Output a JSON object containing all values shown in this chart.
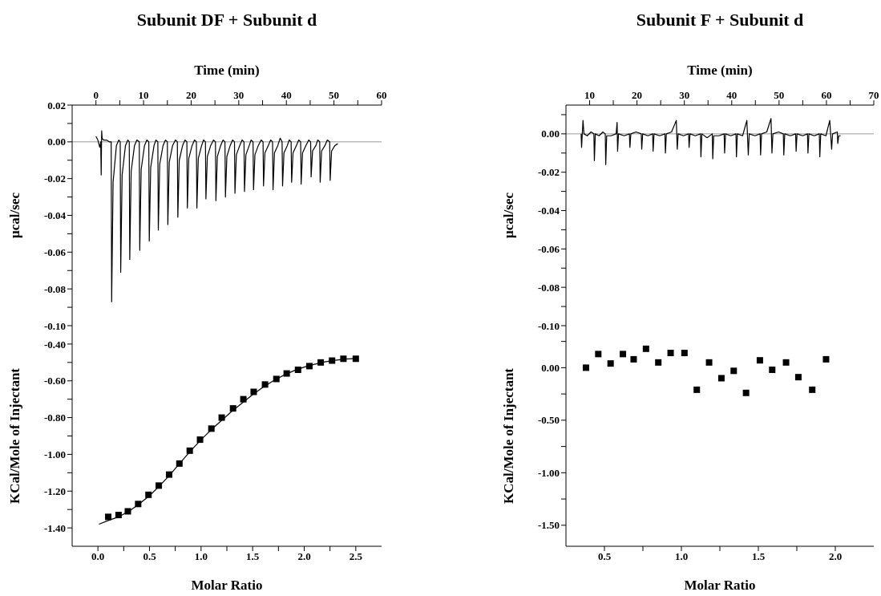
{
  "chart_data": [
    {
      "type": "line",
      "title": "Subunit DF + Subunit d",
      "xlabel": "Time (min)",
      "ylabel": "µcal/sec",
      "xlim": [
        -5,
        60
      ],
      "xticks": [
        0,
        {
          "value": 5,
          "label": null
        },
        10,
        {
          "value": 15,
          "label": null
        },
        20,
        {
          "value": 25,
          "label": null
        },
        30,
        {
          "value": 35,
          "label": null
        },
        40,
        {
          "value": 45,
          "label": null
        },
        50,
        {
          "value": 55,
          "label": null
        },
        60
      ],
      "ylim": [
        -0.1,
        0.02
      ],
      "yticks": [
        {
          "value": 0.02,
          "label": "0.02"
        },
        {
          "value": 0.01,
          "label": null
        },
        {
          "value": 0,
          "label": "0.00"
        },
        {
          "value": -0.01,
          "label": null
        },
        {
          "value": -0.02,
          "label": "-0.02"
        },
        {
          "value": -0.03,
          "label": null
        },
        {
          "value": -0.04,
          "label": "-0.04"
        },
        {
          "value": -0.05,
          "label": null
        },
        {
          "value": -0.06,
          "label": "-0.06"
        },
        {
          "value": -0.07,
          "label": null
        },
        {
          "value": -0.08,
          "label": "-0.08"
        },
        {
          "value": -0.09,
          "label": null
        },
        {
          "value": -0.1,
          "label": "-0.10"
        }
      ],
      "ref_lines": [
        {
          "axis": "y",
          "value": 0,
          "color": "#999999"
        }
      ],
      "series": [
        {
          "color": "#000000",
          "x": [
            0,
            0.4,
            0.8,
            1.0,
            1.1,
            1.2,
            1.3,
            1.6,
            2.2,
            2.8,
            3.2,
            3.3,
            3.6,
            4.3,
            4.8,
            5.1,
            5.2,
            5.5,
            6.2,
            6.7,
            7.0,
            7.1,
            7.4,
            8.1,
            8.6,
            9.1,
            9.2,
            9.5,
            10.2,
            10.7,
            11.1,
            11.2,
            11.5,
            12.2,
            12.6,
            13.0,
            13.1,
            13.4,
            14.1,
            14.6,
            15.0,
            15.1,
            15.4,
            16.1,
            16.7,
            17.1,
            17.2,
            17.5,
            18.2,
            18.7,
            19.1,
            19.2,
            19.5,
            20.2,
            20.7,
            21.1,
            21.2,
            21.5,
            22.2,
            22.6,
            23.0,
            23.1,
            23.4,
            24.1,
            24.7,
            25.1,
            25.2,
            25.5,
            26.2,
            26.7,
            27.1,
            27.2,
            27.5,
            28.2,
            28.7,
            29.1,
            29.2,
            29.5,
            30.2,
            30.7,
            31.1,
            31.2,
            31.5,
            32.2,
            32.6,
            33.0,
            33.1,
            33.4,
            34.1,
            34.7,
            35.1,
            35.2,
            35.5,
            36.2,
            36.7,
            37.1,
            37.2,
            37.5,
            38.2,
            38.7,
            39.1,
            39.2,
            39.5,
            40.2,
            40.6,
            41.0,
            41.1,
            41.4,
            42.1,
            42.6,
            43.0,
            43.1,
            43.4,
            44.1,
            44.7,
            45.1,
            45.2,
            45.5,
            46.2,
            46.6,
            47.0,
            47.1,
            47.4,
            48.1,
            48.6,
            49.1,
            49.2,
            49.5,
            50.2,
            50.8
          ],
          "values": [
            0.003,
            0.001,
            -0.003,
            0,
            -0.018,
            0.006,
            0.002,
            0.001,
            0.001,
            0,
            0,
            -0.087,
            -0.022,
            -0.002,
            0.001,
            0,
            -0.071,
            -0.018,
            -0.002,
            0.001,
            0,
            -0.064,
            -0.016,
            -0.002,
            0.001,
            0,
            -0.059,
            -0.015,
            -0.002,
            0.001,
            0,
            -0.054,
            -0.014,
            -0.002,
            0.001,
            0,
            -0.048,
            -0.012,
            -0.002,
            0.001,
            0,
            -0.045,
            -0.011,
            -0.002,
            0.001,
            0,
            -0.041,
            -0.01,
            -0.002,
            0.001,
            0,
            -0.036,
            -0.009,
            -0.002,
            0.001,
            0,
            -0.036,
            -0.009,
            -0.002,
            0.001,
            0,
            -0.031,
            -0.008,
            -0.002,
            0.001,
            0,
            -0.032,
            -0.008,
            -0.002,
            0.001,
            0,
            -0.03,
            -0.008,
            -0.002,
            0.001,
            0,
            -0.028,
            -0.007,
            -0.002,
            0.001,
            0,
            -0.027,
            -0.007,
            -0.002,
            0.001,
            0,
            -0.026,
            -0.007,
            -0.002,
            0.001,
            0,
            -0.024,
            -0.006,
            -0.002,
            0.001,
            0,
            -0.026,
            -0.006,
            -0.002,
            0.002,
            0,
            -0.024,
            -0.006,
            -0.002,
            0.001,
            0,
            -0.022,
            -0.006,
            -0.002,
            0.001,
            0,
            -0.023,
            -0.006,
            -0.002,
            0.001,
            0,
            -0.019,
            -0.005,
            -0.002,
            0.001,
            0,
            -0.022,
            -0.005,
            -0.002,
            0.001,
            0,
            -0.021,
            -0.005,
            -0.002,
            -0.001
          ]
        }
      ]
    },
    {
      "type": "scatter",
      "xlabel": "Molar Ratio",
      "ylabel": "KCal/Mole of Injectant",
      "xlim": [
        -0.25,
        2.75
      ],
      "xticks": [
        {
          "value": 0,
          "label": "0.0"
        },
        {
          "value": 0.25,
          "label": null
        },
        {
          "value": 0.5,
          "label": "0.5"
        },
        {
          "value": 0.75,
          "label": null
        },
        {
          "value": 1,
          "label": "1.0"
        },
        {
          "value": 1.25,
          "label": null
        },
        {
          "value": 1.5,
          "label": "1.5"
        },
        {
          "value": 1.75,
          "label": null
        },
        {
          "value": 2,
          "label": "2.0"
        },
        {
          "value": 2.25,
          "label": null
        },
        {
          "value": 2.5,
          "label": "2.5"
        }
      ],
      "ylim": [
        -1.5,
        -0.3
      ],
      "yticks": [
        {
          "value": -0.4,
          "label": "-0.40"
        },
        {
          "value": -0.5,
          "label": null
        },
        {
          "value": -0.6,
          "label": "-0.60"
        },
        {
          "value": -0.7,
          "label": null
        },
        {
          "value": -0.8,
          "label": "-0.80"
        },
        {
          "value": -0.9,
          "label": null
        },
        {
          "value": -1,
          "label": "-1.00"
        },
        {
          "value": -1.1,
          "label": null
        },
        {
          "value": -1.2,
          "label": "-1.20"
        },
        {
          "value": -1.3,
          "label": null
        },
        {
          "value": -1.4,
          "label": "-1.40"
        }
      ],
      "series": [
        {
          "marker": "square",
          "color": "#000000",
          "x": [
            0.1,
            0.2,
            0.29,
            0.39,
            0.49,
            0.59,
            0.69,
            0.79,
            0.89,
            0.99,
            1.1,
            1.2,
            1.31,
            1.41,
            1.51,
            1.62,
            1.73,
            1.83,
            1.94,
            2.05,
            2.16,
            2.27,
            2.38,
            2.5
          ],
          "values": [
            -1.34,
            -1.33,
            -1.31,
            -1.27,
            -1.22,
            -1.17,
            -1.11,
            -1.05,
            -0.98,
            -0.92,
            -0.86,
            -0.8,
            -0.75,
            -0.7,
            -0.66,
            -0.62,
            -0.59,
            -0.56,
            -0.54,
            -0.52,
            -0.5,
            -0.49,
            -0.48,
            -0.48
          ]
        },
        {
          "type": "line",
          "color": "#000000",
          "x": [
            0.01,
            0.1,
            0.2,
            0.3,
            0.4,
            0.5,
            0.6,
            0.7,
            0.8,
            0.9,
            1.0,
            1.1,
            1.2,
            1.3,
            1.4,
            1.5,
            1.6,
            1.7,
            1.8,
            1.9,
            2.0,
            2.1,
            2.2,
            2.3,
            2.4,
            2.5
          ],
          "values": [
            -1.38,
            -1.36,
            -1.34,
            -1.31,
            -1.27,
            -1.225,
            -1.17,
            -1.11,
            -1.045,
            -0.98,
            -0.92,
            -0.865,
            -0.815,
            -0.765,
            -0.72,
            -0.675,
            -0.635,
            -0.6,
            -0.57,
            -0.545,
            -0.525,
            -0.51,
            -0.497,
            -0.488,
            -0.482,
            -0.478
          ]
        }
      ]
    },
    {
      "type": "line",
      "title": "Subunit F + Subunit d",
      "xlabel": "Time (min)",
      "ylabel": "µcal/sec",
      "xlim": [
        5,
        70
      ],
      "xticks": [
        10,
        {
          "value": 15,
          "label": null
        },
        20,
        {
          "value": 25,
          "label": null
        },
        30,
        {
          "value": 35,
          "label": null
        },
        40,
        {
          "value": 45,
          "label": null
        },
        50,
        {
          "value": 55,
          "label": null
        },
        60,
        {
          "value": 65,
          "label": null
        },
        70
      ],
      "ylim": [
        -0.1,
        0.015
      ],
      "yticks": [
        {
          "value": 0.01,
          "label": null
        },
        {
          "value": 0,
          "label": "0.00"
        },
        {
          "value": -0.01,
          "label": null
        },
        {
          "value": -0.02,
          "label": "-0.02"
        },
        {
          "value": -0.03,
          "label": null
        },
        {
          "value": -0.04,
          "label": "-0.04"
        },
        {
          "value": -0.05,
          "label": null
        },
        {
          "value": -0.06,
          "label": "-0.06"
        },
        {
          "value": -0.07,
          "label": null
        },
        {
          "value": -0.08,
          "label": "-0.08"
        },
        {
          "value": -0.09,
          "label": null
        },
        {
          "value": -0.1,
          "label": "-0.10"
        }
      ],
      "ref_lines": [
        {
          "axis": "y",
          "value": 0,
          "color": "#999999"
        }
      ],
      "series": [
        {
          "color": "#000000",
          "x": [
            8.2,
            8.3,
            8.6,
            8.8,
            9.5,
            10.3,
            10.9,
            11.0,
            11.2,
            12.0,
            12.8,
            13.3,
            13.4,
            13.6,
            14.5,
            15.6,
            15.8,
            15.9,
            16.1,
            17.3,
            18.4,
            18.5,
            18.7,
            19.8,
            20.9,
            21.0,
            21.2,
            22.3,
            23.3,
            23.4,
            23.6,
            24.8,
            25.9,
            26.0,
            26.2,
            27.3,
            28.3,
            28.5,
            28.7,
            29.8,
            30.9,
            31.0,
            31.2,
            32.3,
            33.4,
            33.5,
            33.7,
            34.8,
            35.9,
            36.0,
            36.2,
            37.3,
            38.4,
            38.5,
            38.7,
            39.8,
            40.9,
            41.0,
            41.2,
            42.3,
            43.2,
            43.5,
            43.7,
            44.9,
            46.0,
            46.1,
            46.3,
            47.4,
            48.3,
            48.5,
            48.7,
            49.9,
            50.9,
            51.0,
            51.2,
            52.4,
            53.5,
            53.6,
            53.8,
            55.0,
            56.0,
            56.1,
            56.3,
            57.4,
            58.5,
            58.6,
            58.8,
            59.9,
            60.7,
            61.1,
            61.3,
            62.3,
            62.4,
            62.6,
            63.0
          ],
          "values": [
            0,
            -0.007,
            0.007,
            0,
            -0.001,
            0.001,
            0,
            -0.014,
            0,
            -0.001,
            0.001,
            0,
            -0.016,
            -0.001,
            -0.001,
            0,
            0.006,
            -0.009,
            0,
            -0.001,
            0,
            -0.007,
            0,
            0.001,
            0,
            -0.008,
            0,
            -0.001,
            0,
            -0.009,
            0,
            -0.001,
            0,
            -0.01,
            0,
            0.001,
            0.007,
            -0.008,
            0,
            -0.001,
            0,
            -0.007,
            0,
            -0.001,
            0,
            -0.012,
            0,
            -0.002,
            0,
            -0.013,
            -0.001,
            -0.001,
            0,
            -0.01,
            0,
            -0.001,
            0,
            -0.012,
            0,
            -0.001,
            0.007,
            -0.011,
            0,
            -0.001,
            0,
            -0.011,
            0,
            0.001,
            0.008,
            -0.01,
            0,
            0.001,
            0,
            -0.011,
            0,
            -0.001,
            0,
            -0.009,
            0,
            -0.001,
            0,
            -0.01,
            0,
            -0.001,
            0,
            -0.012,
            0,
            -0.001,
            0.007,
            -0.008,
            0,
            0.001,
            -0.005,
            -0.001,
            -0.001
          ]
        }
      ]
    },
    {
      "type": "scatter",
      "xlabel": "Molar Ratio",
      "ylabel": "KCal/Mole of Injectant",
      "xlim": [
        0.25,
        2.25
      ],
      "xticks": [
        0.5,
        {
          "value": 0.75,
          "label": null
        },
        {
          "value": 1,
          "label": "1.0"
        },
        {
          "value": 1.25,
          "label": null
        },
        1.5,
        {
          "value": 1.75,
          "label": null
        },
        {
          "value": 2,
          "label": "2.0"
        }
      ],
      "ylim": [
        -1.7,
        0.4
      ],
      "yticks": [
        {
          "value": 0.25,
          "label": null
        },
        {
          "value": 0,
          "label": "0.00"
        },
        {
          "value": -0.25,
          "label": null
        },
        {
          "value": -0.5,
          "label": "-0.50"
        },
        {
          "value": -0.75,
          "label": null
        },
        {
          "value": -1,
          "label": "-1.00"
        },
        {
          "value": -1.25,
          "label": null
        },
        {
          "value": -1.5,
          "label": "-1.50"
        }
      ],
      "series": [
        {
          "marker": "square",
          "color": "#000000",
          "x": [
            0.38,
            0.46,
            0.54,
            0.62,
            0.69,
            0.77,
            0.85,
            0.93,
            1.02,
            1.1,
            1.18,
            1.26,
            1.34,
            1.42,
            1.51,
            1.59,
            1.68,
            1.76,
            1.85,
            1.94
          ],
          "values": [
            0,
            0.13,
            0.04,
            0.13,
            0.08,
            0.18,
            0.05,
            0.14,
            0.14,
            -0.21,
            0.05,
            -0.1,
            -0.03,
            -0.24,
            0.07,
            -0.02,
            0.05,
            -0.09,
            -0.21,
            0.08
          ]
        }
      ]
    }
  ]
}
